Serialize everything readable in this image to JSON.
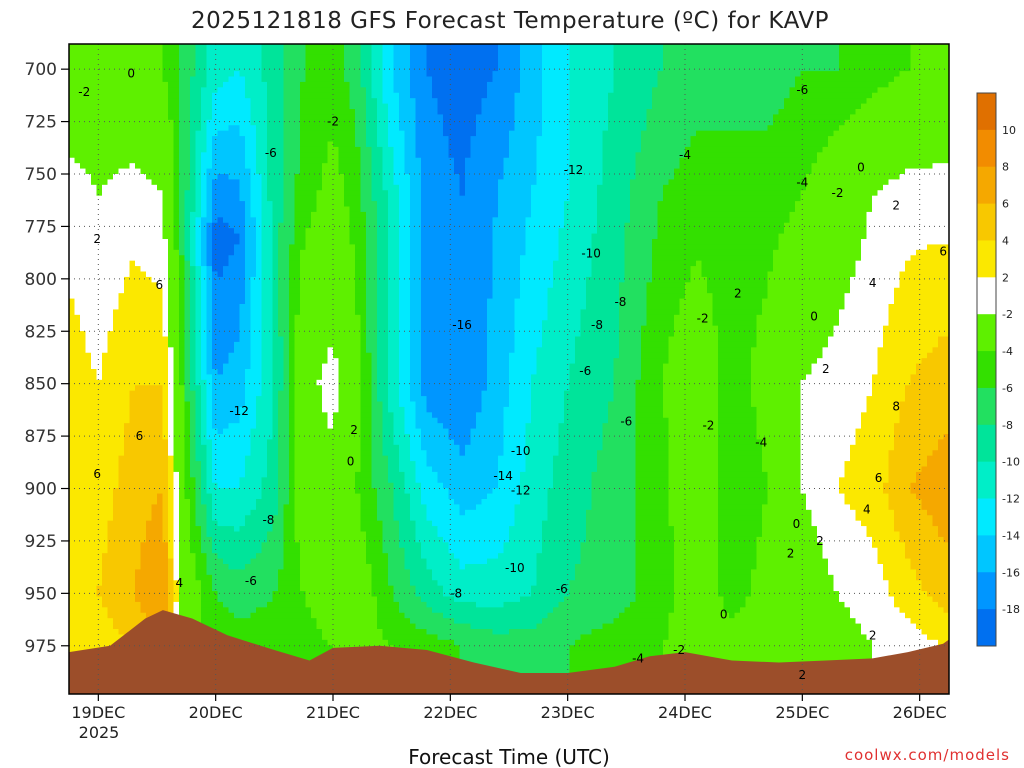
{
  "chart_data": {
    "type": "heatmap",
    "title": "2025121818 GFS Forecast Temperature (ºC) for KAVP",
    "xlabel": "Forecast Time (UTC)",
    "ylabel": "",
    "credit": "coolwx.com/models",
    "x_ticks": [
      "19DEC",
      "20DEC",
      "21DEC",
      "22DEC",
      "23DEC",
      "24DEC",
      "25DEC",
      "26DEC"
    ],
    "x_tick_sub": "2025",
    "y_ticks": [
      700,
      725,
      750,
      775,
      800,
      825,
      850,
      875,
      900,
      925,
      950,
      975
    ],
    "ylim": [
      1000,
      700
    ],
    "grid": "dotted",
    "colorbar": {
      "levels": [
        10,
        8,
        6,
        4,
        2,
        -2,
        -4,
        -6,
        -8,
        -10,
        -12,
        -14,
        -16,
        -18
      ],
      "colors": [
        "#f28c00",
        "#f5a800",
        "#f8c800",
        "#fbe800",
        "#ffffff",
        "#5ef000",
        "#33e000",
        "#22e060",
        "#00e49a",
        "#00eec8",
        "#00eaff",
        "#00c6ff",
        "#0096ff",
        "#0070f0"
      ],
      "top_color": "#e07000"
    },
    "columns": [
      {
        "day": 18.75,
        "profile": [
          [
            700,
            0
          ],
          [
            760,
            3
          ],
          [
            850,
            5
          ],
          [
            950,
            6
          ],
          [
            975,
            5
          ]
        ]
      },
      {
        "day": 19.0,
        "profile": [
          [
            700,
            0
          ],
          [
            760,
            2
          ],
          [
            850,
            4
          ],
          [
            950,
            6
          ],
          [
            975,
            5
          ]
        ]
      },
      {
        "day": 19.3,
        "profile": [
          [
            700,
            -1
          ],
          [
            760,
            3
          ],
          [
            850,
            6
          ],
          [
            950,
            8
          ],
          [
            975,
            6
          ]
        ]
      },
      {
        "day": 19.55,
        "profile": [
          [
            700,
            -2
          ],
          [
            760,
            2
          ],
          [
            850,
            6
          ],
          [
            950,
            10
          ],
          [
            975,
            8
          ]
        ]
      },
      {
        "day": 19.75,
        "profile": [
          [
            700,
            -5
          ],
          [
            780,
            -6
          ],
          [
            850,
            -4
          ],
          [
            950,
            0
          ],
          [
            975,
            -1
          ]
        ]
      },
      {
        "day": 20.0,
        "profile": [
          [
            700,
            -9
          ],
          [
            780,
            -17
          ],
          [
            850,
            -14
          ],
          [
            900,
            -10
          ],
          [
            950,
            -4
          ],
          [
            975,
            -3
          ]
        ]
      },
      {
        "day": 20.2,
        "profile": [
          [
            700,
            -10
          ],
          [
            780,
            -16
          ],
          [
            850,
            -13
          ],
          [
            900,
            -10
          ],
          [
            950,
            -5
          ],
          [
            975,
            -3
          ]
        ]
      },
      {
        "day": 20.5,
        "profile": [
          [
            700,
            -7
          ],
          [
            780,
            -7
          ],
          [
            850,
            -8
          ],
          [
            900,
            -7
          ],
          [
            950,
            -4
          ],
          [
            975,
            -3
          ]
        ]
      },
      {
        "day": 20.75,
        "profile": [
          [
            700,
            -4
          ],
          [
            760,
            -3
          ],
          [
            850,
            1
          ],
          [
            900,
            0
          ],
          [
            950,
            -2
          ],
          [
            975,
            -3
          ]
        ]
      },
      {
        "day": 21.0,
        "profile": [
          [
            700,
            -3
          ],
          [
            760,
            -1
          ],
          [
            850,
            3
          ],
          [
            900,
            1
          ],
          [
            950,
            0
          ],
          [
            975,
            -2
          ]
        ]
      },
      {
        "day": 21.2,
        "profile": [
          [
            700,
            -5
          ],
          [
            760,
            -3
          ],
          [
            850,
            -1
          ],
          [
            900,
            -2
          ],
          [
            950,
            0
          ],
          [
            975,
            -1
          ]
        ]
      },
      {
        "day": 21.5,
        "profile": [
          [
            700,
            -12
          ],
          [
            760,
            -9
          ],
          [
            850,
            -9
          ],
          [
            900,
            -6
          ],
          [
            950,
            -4
          ],
          [
            975,
            -2
          ]
        ]
      },
      {
        "day": 21.8,
        "profile": [
          [
            700,
            -16
          ],
          [
            760,
            -15
          ],
          [
            850,
            -15
          ],
          [
            900,
            -11
          ],
          [
            950,
            -7
          ],
          [
            975,
            -3
          ]
        ]
      },
      {
        "day": 22.1,
        "profile": [
          [
            700,
            -17
          ],
          [
            760,
            -16
          ],
          [
            850,
            -16
          ],
          [
            900,
            -13
          ],
          [
            950,
            -9
          ],
          [
            975,
            -4
          ]
        ]
      },
      {
        "day": 22.4,
        "profile": [
          [
            700,
            -16
          ],
          [
            760,
            -14
          ],
          [
            850,
            -13
          ],
          [
            900,
            -12
          ],
          [
            950,
            -9
          ],
          [
            975,
            -5
          ]
        ]
      },
      {
        "day": 22.7,
        "profile": [
          [
            700,
            -13
          ],
          [
            760,
            -12
          ],
          [
            850,
            -10
          ],
          [
            900,
            -9
          ],
          [
            950,
            -8
          ],
          [
            975,
            -5
          ]
        ]
      },
      {
        "day": 23.0,
        "profile": [
          [
            700,
            -10
          ],
          [
            760,
            -10
          ],
          [
            850,
            -8
          ],
          [
            900,
            -7
          ],
          [
            950,
            -6
          ],
          [
            975,
            -4
          ]
        ]
      },
      {
        "day": 23.4,
        "profile": [
          [
            700,
            -8
          ],
          [
            760,
            -7
          ],
          [
            850,
            -6
          ],
          [
            900,
            -5
          ],
          [
            950,
            -5
          ],
          [
            975,
            -3
          ]
        ]
      },
      {
        "day": 23.8,
        "profile": [
          [
            700,
            -6
          ],
          [
            760,
            -4
          ],
          [
            850,
            -2
          ],
          [
            900,
            -3
          ],
          [
            950,
            -3
          ],
          [
            975,
            -2
          ]
        ]
      },
      {
        "day": 24.1,
        "profile": [
          [
            700,
            -5
          ],
          [
            760,
            -3
          ],
          [
            850,
            0
          ],
          [
            900,
            1
          ],
          [
            950,
            0
          ],
          [
            975,
            -1
          ]
        ]
      },
      {
        "day": 24.4,
        "profile": [
          [
            700,
            -5
          ],
          [
            760,
            -3
          ],
          [
            850,
            -3
          ],
          [
            900,
            -4
          ],
          [
            950,
            -3
          ],
          [
            975,
            -1
          ]
        ]
      },
      {
        "day": 24.7,
        "profile": [
          [
            700,
            -5
          ],
          [
            760,
            -3
          ],
          [
            850,
            -1
          ],
          [
            900,
            -2
          ],
          [
            950,
            -1
          ],
          [
            975,
            -1
          ]
        ]
      },
      {
        "day": 25.0,
        "profile": [
          [
            700,
            -4
          ],
          [
            760,
            -2
          ],
          [
            850,
            2
          ],
          [
            900,
            2
          ],
          [
            950,
            0
          ],
          [
            975,
            -1
          ]
        ]
      },
      {
        "day": 25.3,
        "profile": [
          [
            700,
            -4
          ],
          [
            760,
            0
          ],
          [
            850,
            3
          ],
          [
            900,
            4
          ],
          [
            950,
            2
          ],
          [
            975,
            1
          ]
        ]
      },
      {
        "day": 25.6,
        "profile": [
          [
            700,
            -3
          ],
          [
            760,
            2
          ],
          [
            850,
            4
          ],
          [
            900,
            5
          ],
          [
            950,
            3
          ],
          [
            975,
            2
          ]
        ]
      },
      {
        "day": 25.9,
        "profile": [
          [
            700,
            -2
          ],
          [
            760,
            3
          ],
          [
            850,
            6
          ],
          [
            900,
            8
          ],
          [
            950,
            5
          ],
          [
            975,
            3
          ]
        ]
      },
      {
        "day": 26.2,
        "profile": [
          [
            700,
            -1
          ],
          [
            760,
            3
          ],
          [
            850,
            7
          ],
          [
            900,
            9
          ],
          [
            950,
            7
          ],
          [
            975,
            4
          ]
        ]
      }
    ],
    "terrain": [
      [
        18.75,
        978
      ],
      [
        19.1,
        975
      ],
      [
        19.4,
        962
      ],
      [
        19.55,
        958
      ],
      [
        19.8,
        962
      ],
      [
        20.1,
        970
      ],
      [
        20.5,
        977
      ],
      [
        20.8,
        982
      ],
      [
        21.0,
        976
      ],
      [
        21.4,
        975
      ],
      [
        21.8,
        977
      ],
      [
        22.2,
        983
      ],
      [
        22.6,
        988
      ],
      [
        23.0,
        988
      ],
      [
        23.4,
        985
      ],
      [
        23.7,
        980
      ],
      [
        24.0,
        978
      ],
      [
        24.4,
        982
      ],
      [
        24.8,
        983
      ],
      [
        25.2,
        982
      ],
      [
        25.6,
        981
      ],
      [
        25.9,
        978
      ],
      [
        26.2,
        974
      ],
      [
        26.25,
        972
      ]
    ],
    "contour_labels": [
      {
        "text": "-2",
        "day": 18.88,
        "p": 711
      },
      {
        "text": "0",
        "day": 19.28,
        "p": 702
      },
      {
        "text": "2",
        "day": 18.99,
        "p": 781
      },
      {
        "text": "6",
        "day": 19.52,
        "p": 803
      },
      {
        "text": "6",
        "day": 19.35,
        "p": 875
      },
      {
        "text": "6",
        "day": 18.99,
        "p": 893
      },
      {
        "text": "4",
        "day": 19.69,
        "p": 945
      },
      {
        "text": "-6",
        "day": 20.47,
        "p": 740
      },
      {
        "text": "-2",
        "day": 21.0,
        "p": 725
      },
      {
        "text": "-12",
        "day": 20.2,
        "p": 863
      },
      {
        "text": "-8",
        "day": 20.45,
        "p": 915
      },
      {
        "text": "-6",
        "day": 20.3,
        "p": 944
      },
      {
        "text": "2",
        "day": 21.18,
        "p": 872
      },
      {
        "text": "0",
        "day": 21.15,
        "p": 887
      },
      {
        "text": "-12",
        "day": 23.05,
        "p": 748
      },
      {
        "text": "-10",
        "day": 23.2,
        "p": 788
      },
      {
        "text": "-16",
        "day": 22.1,
        "p": 822
      },
      {
        "text": "-8",
        "day": 23.45,
        "p": 811
      },
      {
        "text": "-8",
        "day": 23.25,
        "p": 822
      },
      {
        "text": "-6",
        "day": 23.15,
        "p": 844
      },
      {
        "text": "-6",
        "day": 23.5,
        "p": 868
      },
      {
        "text": "-10",
        "day": 22.6,
        "p": 882
      },
      {
        "text": "-14",
        "day": 22.45,
        "p": 894
      },
      {
        "text": "-12",
        "day": 22.6,
        "p": 901
      },
      {
        "text": "-10",
        "day": 22.55,
        "p": 938
      },
      {
        "text": "-8",
        "day": 22.05,
        "p": 950
      },
      {
        "text": "-6",
        "day": 22.95,
        "p": 948
      },
      {
        "text": "-4",
        "day": 23.6,
        "p": 981
      },
      {
        "text": "-2",
        "day": 23.95,
        "p": 977
      },
      {
        "text": "-6",
        "day": 25.0,
        "p": 710
      },
      {
        "text": "-4",
        "day": 24.0,
        "p": 741
      },
      {
        "text": "-4",
        "day": 25.0,
        "p": 754
      },
      {
        "text": "-2",
        "day": 25.3,
        "p": 759
      },
      {
        "text": "0",
        "day": 25.5,
        "p": 747
      },
      {
        "text": "2",
        "day": 25.8,
        "p": 765
      },
      {
        "text": "2",
        "day": 24.45,
        "p": 807
      },
      {
        "text": "-2",
        "day": 24.15,
        "p": 819
      },
      {
        "text": "0",
        "day": 25.1,
        "p": 818
      },
      {
        "text": "4",
        "day": 25.6,
        "p": 802
      },
      {
        "text": "6",
        "day": 26.2,
        "p": 787
      },
      {
        "text": "2",
        "day": 25.2,
        "p": 843
      },
      {
        "text": "-2",
        "day": 24.2,
        "p": 870
      },
      {
        "text": "-4",
        "day": 24.65,
        "p": 878
      },
      {
        "text": "8",
        "day": 25.8,
        "p": 861
      },
      {
        "text": "6",
        "day": 25.65,
        "p": 895
      },
      {
        "text": "4",
        "day": 25.55,
        "p": 910
      },
      {
        "text": "0",
        "day": 24.95,
        "p": 917
      },
      {
        "text": "2",
        "day": 25.15,
        "p": 925
      },
      {
        "text": "2",
        "day": 24.9,
        "p": 931
      },
      {
        "text": "0",
        "day": 24.33,
        "p": 960
      },
      {
        "text": "2",
        "day": 25.6,
        "p": 970
      },
      {
        "text": "2",
        "day": 25.0,
        "p": 989
      }
    ]
  }
}
